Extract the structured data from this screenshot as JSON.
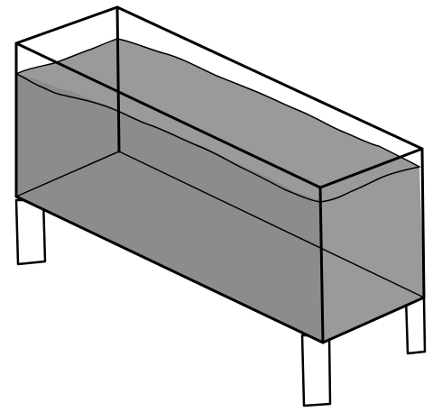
{
  "colors": {
    "water": "#8c8c8c",
    "water_back": "#9a9a9a",
    "outline": "#000000",
    "legs": "#ffffff",
    "background": "#ffffff"
  }
}
